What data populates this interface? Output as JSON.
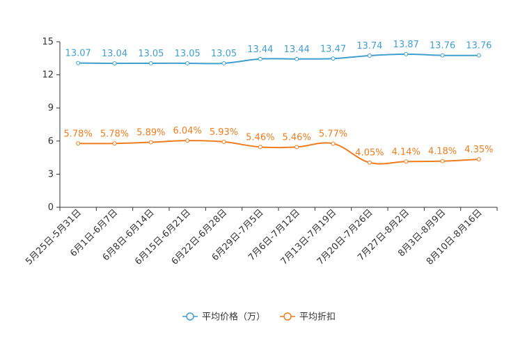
{
  "chart_data": {
    "type": "line",
    "title": "",
    "xlabel": "",
    "ylabel": "",
    "ylim": [
      0,
      15
    ],
    "yticks": [
      "0",
      "3",
      "6",
      "9",
      "12",
      "15"
    ],
    "categories": [
      "5月25日-5月31日",
      "6月1日-6月7日",
      "6月8日-6月14日",
      "6月15日-6月21日",
      "6月22日-6月28日",
      "6月29日-7月5日",
      "7月6日-7月12日",
      "7月13日-7月19日",
      "7月20日-7月26日",
      "7月27日-8月2日",
      "8月3日-8月9日",
      "8月10日-8月16日"
    ],
    "series": [
      {
        "name": "平均价格（万）",
        "color": "#3fa0cf",
        "values": [
          13.07,
          13.04,
          13.05,
          13.05,
          13.05,
          13.44,
          13.44,
          13.47,
          13.74,
          13.87,
          13.76,
          13.76
        ],
        "labels": [
          "13.07",
          "13.04",
          "13.05",
          "13.05",
          "13.05",
          "13.44",
          "13.44",
          "13.47",
          "13.74",
          "13.87",
          "13.76",
          "13.76"
        ]
      },
      {
        "name": "平均折扣",
        "color": "#f07c1d",
        "values": [
          5.78,
          5.78,
          5.89,
          6.04,
          5.93,
          5.46,
          5.46,
          5.77,
          4.05,
          4.14,
          4.18,
          4.35
        ],
        "labels": [
          "5.78%",
          "5.78%",
          "5.89%",
          "6.04%",
          "5.93%",
          "5.46%",
          "5.46%",
          "5.77%",
          "4.05%",
          "4.14%",
          "4.18%",
          "4.35%"
        ]
      }
    ],
    "legend_position": "bottom-center",
    "grid": false
  }
}
